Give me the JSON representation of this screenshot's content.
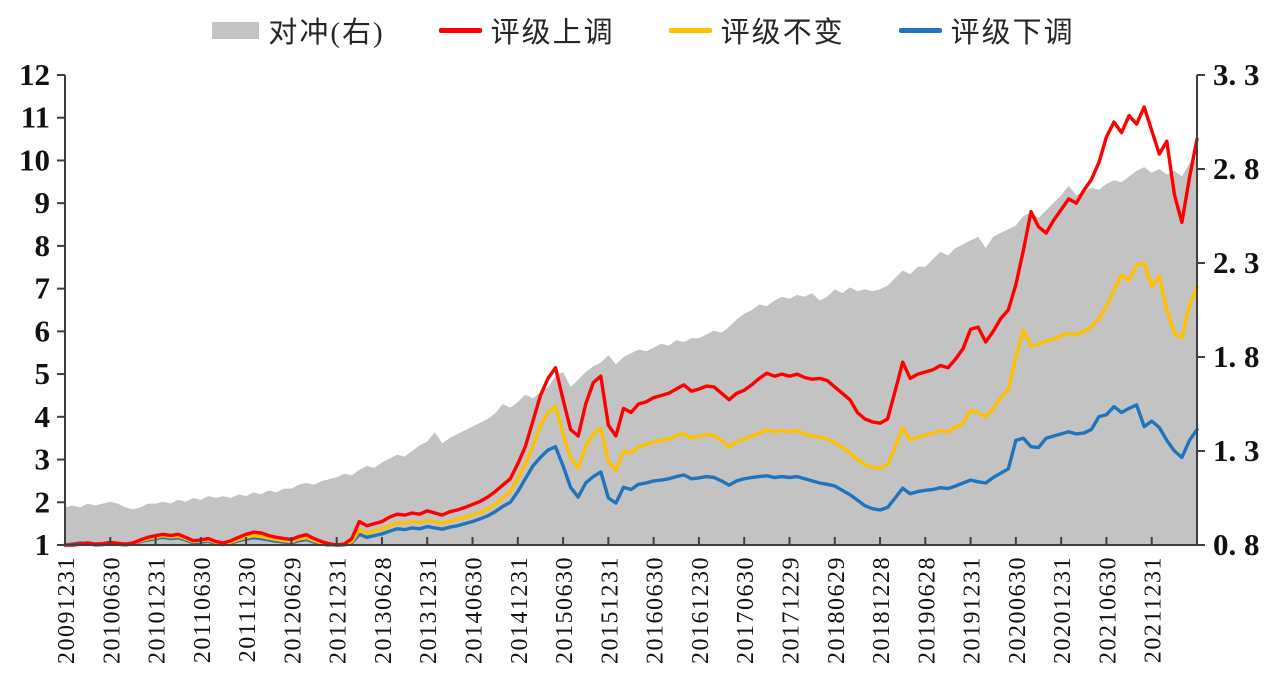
{
  "legend": {
    "items": [
      {
        "id": "hedge",
        "label": "对冲(右)",
        "marker": "area",
        "color": "#C3C3C3"
      },
      {
        "id": "upgrade",
        "label": "评级上调",
        "marker": "line",
        "color": "#FF0000"
      },
      {
        "id": "unchanged",
        "label": "评级不变",
        "marker": "line",
        "color": "#FFC000"
      },
      {
        "id": "downgrade",
        "label": "评级下调",
        "marker": "line",
        "color": "#1F74BD"
      }
    ]
  },
  "chart_data": {
    "type": "line+area combo, dual axis",
    "title": "",
    "x_frequency": "monthly",
    "x_start": "2009-12",
    "x_end": "2022-06",
    "grid": false,
    "legend_position": "top-center",
    "x_tick_labels": [
      "20091231",
      "20100630",
      "20101231",
      "20110630",
      "20111230",
      "20120629",
      "20121231",
      "20130628",
      "20131231",
      "20140630",
      "20141231",
      "20150630",
      "20151231",
      "20160630",
      "20161230",
      "20170630",
      "20171229",
      "20180629",
      "20181228",
      "20190628",
      "20191231",
      "20200630",
      "20201231",
      "20210630",
      "20211231"
    ],
    "x_ticks_every_n_points": 6,
    "left_axis": {
      "min": 1,
      "max": 12,
      "ticks": [
        1,
        2,
        3,
        4,
        5,
        6,
        7,
        8,
        9,
        10,
        11,
        12
      ],
      "tick_labels": [
        "1",
        "2",
        "3",
        "4",
        "5",
        "6",
        "7",
        "8",
        "9",
        "10",
        "11",
        "12"
      ]
    },
    "right_axis": {
      "min": 0.8,
      "max": 3.3,
      "ticks": [
        0.8,
        1.3,
        1.8,
        2.3,
        2.8,
        3.3
      ],
      "tick_labels": [
        "0. 8",
        "1. 3",
        "1. 8",
        "2. 3",
        "2. 8",
        "3. 3"
      ]
    },
    "series": [
      {
        "id": "hedge",
        "name": "对冲(右)",
        "type": "area",
        "axis": "right",
        "color": "#C3C3C3",
        "values": [
          1.0,
          1.01,
          1.0,
          1.02,
          1.01,
          1.02,
          1.03,
          1.02,
          1.0,
          0.99,
          1.0,
          1.02,
          1.02,
          1.03,
          1.02,
          1.04,
          1.03,
          1.05,
          1.04,
          1.06,
          1.05,
          1.06,
          1.05,
          1.07,
          1.06,
          1.08,
          1.07,
          1.09,
          1.08,
          1.1,
          1.1,
          1.12,
          1.13,
          1.12,
          1.14,
          1.15,
          1.16,
          1.18,
          1.17,
          1.2,
          1.22,
          1.21,
          1.24,
          1.26,
          1.28,
          1.27,
          1.3,
          1.33,
          1.35,
          1.4,
          1.34,
          1.37,
          1.39,
          1.41,
          1.43,
          1.45,
          1.47,
          1.5,
          1.55,
          1.53,
          1.56,
          1.6,
          1.58,
          1.61,
          1.64,
          1.7,
          1.72,
          1.64,
          1.68,
          1.72,
          1.75,
          1.77,
          1.81,
          1.76,
          1.8,
          1.82,
          1.84,
          1.83,
          1.85,
          1.87,
          1.86,
          1.89,
          1.88,
          1.9,
          1.9,
          1.92,
          1.94,
          1.93,
          1.96,
          2.0,
          2.03,
          2.05,
          2.08,
          2.07,
          2.1,
          2.12,
          2.11,
          2.13,
          2.12,
          2.14,
          2.1,
          2.12,
          2.16,
          2.14,
          2.17,
          2.15,
          2.16,
          2.15,
          2.16,
          2.18,
          2.22,
          2.26,
          2.24,
          2.28,
          2.28,
          2.32,
          2.36,
          2.34,
          2.38,
          2.4,
          2.42,
          2.44,
          2.38,
          2.44,
          2.46,
          2.48,
          2.5,
          2.55,
          2.57,
          2.54,
          2.58,
          2.62,
          2.66,
          2.71,
          2.66,
          2.68,
          2.7,
          2.69,
          2.72,
          2.74,
          2.73,
          2.76,
          2.79,
          2.81,
          2.78,
          2.8,
          2.77,
          2.79,
          2.76,
          2.83,
          2.85
        ]
      },
      {
        "id": "downgrade",
        "name": "评级下调",
        "type": "line",
        "axis": "left",
        "color": "#1F74BD",
        "values": [
          1.0,
          1.02,
          1.05,
          1.03,
          1.0,
          1.01,
          1.03,
          1.02,
          1.0,
          1.03,
          1.08,
          1.12,
          1.15,
          1.18,
          1.15,
          1.17,
          1.12,
          1.05,
          1.07,
          1.09,
          1.03,
          1.01,
          1.05,
          1.1,
          1.14,
          1.17,
          1.15,
          1.12,
          1.09,
          1.07,
          1.05,
          1.1,
          1.13,
          1.07,
          1.02,
          1.0,
          1.0,
          1.0,
          1.05,
          1.25,
          1.18,
          1.22,
          1.26,
          1.32,
          1.38,
          1.36,
          1.4,
          1.38,
          1.43,
          1.4,
          1.37,
          1.42,
          1.45,
          1.5,
          1.55,
          1.61,
          1.68,
          1.78,
          1.9,
          2.0,
          2.25,
          2.55,
          2.85,
          3.05,
          3.22,
          3.3,
          2.85,
          2.35,
          2.12,
          2.45,
          2.6,
          2.71,
          2.1,
          1.98,
          2.35,
          2.3,
          2.42,
          2.45,
          2.5,
          2.52,
          2.55,
          2.6,
          2.64,
          2.55,
          2.57,
          2.6,
          2.58,
          2.5,
          2.4,
          2.5,
          2.55,
          2.58,
          2.6,
          2.62,
          2.58,
          2.6,
          2.58,
          2.6,
          2.55,
          2.5,
          2.45,
          2.42,
          2.38,
          2.28,
          2.18,
          2.05,
          1.92,
          1.85,
          1.82,
          1.88,
          2.1,
          2.33,
          2.2,
          2.25,
          2.28,
          2.3,
          2.34,
          2.32,
          2.38,
          2.45,
          2.52,
          2.48,
          2.45,
          2.58,
          2.68,
          2.78,
          3.45,
          3.5,
          3.3,
          3.28,
          3.5,
          3.55,
          3.6,
          3.65,
          3.6,
          3.62,
          3.7,
          4.0,
          4.05,
          4.24,
          4.1,
          4.2,
          4.28,
          3.77,
          3.9,
          3.75,
          3.45,
          3.2,
          3.05,
          3.45,
          3.7
        ]
      },
      {
        "id": "unchanged",
        "name": "评级不变",
        "type": "line",
        "axis": "left",
        "color": "#FFC000",
        "values": [
          1.0,
          1.0,
          1.01,
          1.03,
          1.01,
          1.02,
          1.04,
          1.03,
          1.01,
          1.04,
          1.1,
          1.15,
          1.18,
          1.22,
          1.19,
          1.21,
          1.15,
          1.08,
          1.1,
          1.12,
          1.06,
          1.03,
          1.07,
          1.13,
          1.18,
          1.22,
          1.2,
          1.16,
          1.13,
          1.1,
          1.08,
          1.14,
          1.17,
          1.1,
          1.04,
          1.01,
          1.0,
          1.01,
          1.08,
          1.35,
          1.28,
          1.32,
          1.38,
          1.45,
          1.52,
          1.5,
          1.55,
          1.52,
          1.58,
          1.54,
          1.5,
          1.56,
          1.6,
          1.65,
          1.7,
          1.76,
          1.84,
          1.95,
          2.1,
          2.25,
          2.55,
          2.9,
          3.3,
          3.8,
          4.1,
          4.25,
          3.6,
          3.05,
          2.8,
          3.3,
          3.6,
          3.74,
          2.95,
          2.75,
          3.2,
          3.15,
          3.3,
          3.35,
          3.42,
          3.45,
          3.48,
          3.55,
          3.62,
          3.5,
          3.55,
          3.58,
          3.56,
          3.45,
          3.3,
          3.42,
          3.48,
          3.55,
          3.62,
          3.7,
          3.65,
          3.68,
          3.65,
          3.68,
          3.6,
          3.55,
          3.52,
          3.48,
          3.4,
          3.28,
          3.15,
          3.0,
          2.88,
          2.82,
          2.8,
          2.88,
          3.3,
          3.74,
          3.46,
          3.52,
          3.58,
          3.62,
          3.68,
          3.65,
          3.76,
          3.85,
          4.15,
          4.1,
          4.0,
          4.2,
          4.45,
          4.63,
          5.4,
          6.03,
          5.65,
          5.7,
          5.78,
          5.82,
          5.9,
          5.96,
          5.92,
          6.0,
          6.1,
          6.3,
          6.58,
          6.97,
          7.32,
          7.2,
          7.55,
          7.6,
          7.05,
          7.3,
          6.5,
          5.95,
          5.85,
          6.6,
          7.05
        ]
      },
      {
        "id": "upgrade",
        "name": "评级上调",
        "type": "line",
        "axis": "left",
        "color": "#FF0000",
        "values": [
          1.0,
          1.0,
          1.02,
          1.05,
          1.02,
          1.03,
          1.06,
          1.04,
          1.02,
          1.05,
          1.12,
          1.18,
          1.22,
          1.25,
          1.22,
          1.25,
          1.18,
          1.1,
          1.12,
          1.15,
          1.08,
          1.05,
          1.1,
          1.18,
          1.25,
          1.3,
          1.28,
          1.22,
          1.18,
          1.15,
          1.13,
          1.2,
          1.24,
          1.15,
          1.08,
          1.03,
          1.0,
          1.02,
          1.15,
          1.55,
          1.45,
          1.5,
          1.55,
          1.65,
          1.72,
          1.7,
          1.75,
          1.72,
          1.8,
          1.75,
          1.7,
          1.78,
          1.82,
          1.88,
          1.95,
          2.02,
          2.12,
          2.25,
          2.4,
          2.55,
          2.9,
          3.3,
          3.9,
          4.5,
          4.9,
          5.15,
          4.4,
          3.7,
          3.55,
          4.3,
          4.8,
          4.95,
          3.8,
          3.55,
          4.2,
          4.1,
          4.3,
          4.35,
          4.45,
          4.5,
          4.55,
          4.65,
          4.75,
          4.6,
          4.65,
          4.72,
          4.7,
          4.55,
          4.4,
          4.55,
          4.62,
          4.75,
          4.9,
          5.02,
          4.95,
          5.0,
          4.95,
          5.0,
          4.92,
          4.88,
          4.9,
          4.85,
          4.7,
          4.55,
          4.4,
          4.1,
          3.95,
          3.88,
          3.85,
          3.95,
          4.6,
          5.28,
          4.9,
          5.0,
          5.05,
          5.1,
          5.2,
          5.15,
          5.35,
          5.6,
          6.05,
          6.1,
          5.75,
          6.0,
          6.3,
          6.5,
          7.1,
          7.9,
          8.8,
          8.45,
          8.3,
          8.6,
          8.85,
          9.1,
          9.0,
          9.3,
          9.55,
          9.95,
          10.55,
          10.9,
          10.65,
          11.05,
          10.85,
          11.25,
          10.7,
          10.15,
          10.45,
          9.2,
          8.55,
          9.6,
          10.5
        ]
      }
    ]
  },
  "style": {
    "axis_color": "#3f3f3f",
    "text_color": "#111111",
    "background": "#ffffff"
  }
}
